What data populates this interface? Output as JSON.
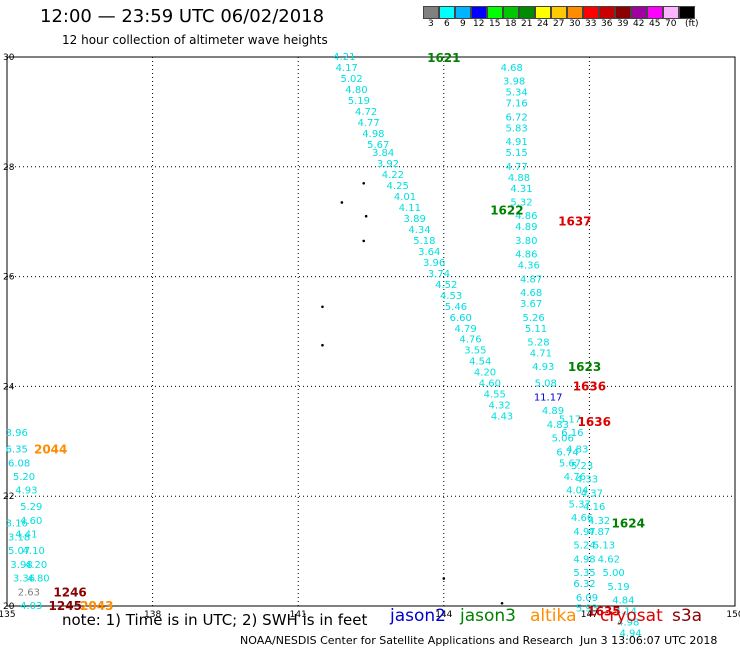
{
  "header": {
    "title": "12:00 — 23:59 UTC 06/02/2018",
    "subtitle": "12 hour collection of altimeter wave heights"
  },
  "legend": {
    "unit": "(ft)",
    "items": [
      {
        "label": "3",
        "color": "#808080"
      },
      {
        "label": "6",
        "color": "#00ffff"
      },
      {
        "label": "9",
        "color": "#00b4ff"
      },
      {
        "label": "12",
        "color": "#0000ff"
      },
      {
        "label": "15",
        "color": "#00ff00"
      },
      {
        "label": "18",
        "color": "#00c800"
      },
      {
        "label": "21",
        "color": "#008c00"
      },
      {
        "label": "24",
        "color": "#ffff00"
      },
      {
        "label": "27",
        "color": "#ffc800"
      },
      {
        "label": "30",
        "color": "#ff8c00"
      },
      {
        "label": "33",
        "color": "#ff0000"
      },
      {
        "label": "36",
        "color": "#c80000"
      },
      {
        "label": "39",
        "color": "#8c0000"
      },
      {
        "label": "42",
        "color": "#a000a0"
      },
      {
        "label": "45",
        "color": "#ff00ff"
      },
      {
        "label": "70",
        "color": "#ffb4ff"
      },
      {
        "label": "",
        "color": "#000000"
      }
    ]
  },
  "axes": {
    "lon_ticks": [
      "135",
      "138",
      "141",
      "144",
      "147",
      "150"
    ],
    "lat_ticks": [
      "20",
      "22",
      "24",
      "26",
      "28",
      "30"
    ],
    "lon_range": [
      135,
      150
    ],
    "lat_range": [
      20,
      30
    ],
    "grid": true
  },
  "chart_data": {
    "type": "scatter",
    "x_range": [
      135,
      150
    ],
    "y_range": [
      20,
      30
    ],
    "tracks": [
      {
        "satellite": "jason3",
        "time_label": "1621",
        "label_pos": [
          144.0,
          29.98
        ],
        "label_color": "#008000",
        "points": [
          {
            "lon": 141.95,
            "lat": 30.0,
            "swh": "4.21"
          },
          {
            "lon": 142.0,
            "lat": 29.8,
            "swh": "4.17"
          },
          {
            "lon": 142.1,
            "lat": 29.6,
            "swh": "5.02"
          },
          {
            "lon": 142.2,
            "lat": 29.4,
            "swh": "4.80"
          },
          {
            "lon": 142.25,
            "lat": 29.2,
            "swh": "5.19"
          },
          {
            "lon": 142.4,
            "lat": 29.0,
            "swh": "4.72"
          },
          {
            "lon": 142.45,
            "lat": 28.8,
            "swh": "4.77"
          },
          {
            "lon": 142.55,
            "lat": 28.6,
            "swh": "4.98"
          },
          {
            "lon": 142.65,
            "lat": 28.4,
            "swh": "5.67"
          },
          {
            "lon": 142.75,
            "lat": 28.25,
            "swh": "3.84"
          },
          {
            "lon": 142.85,
            "lat": 28.05,
            "swh": "3.92"
          },
          {
            "lon": 142.95,
            "lat": 27.85,
            "swh": "4.22"
          },
          {
            "lon": 143.05,
            "lat": 27.65,
            "swh": "4.25"
          },
          {
            "lon": 143.2,
            "lat": 27.45,
            "swh": "4.01"
          },
          {
            "lon": 143.3,
            "lat": 27.25,
            "swh": "4.11"
          },
          {
            "lon": 143.4,
            "lat": 27.05,
            "swh": "3.89"
          },
          {
            "lon": 143.5,
            "lat": 26.85,
            "swh": "4.34"
          },
          {
            "lon": 143.6,
            "lat": 26.65,
            "swh": "5.18"
          },
          {
            "lon": 143.7,
            "lat": 26.45,
            "swh": "3.64"
          },
          {
            "lon": 143.8,
            "lat": 26.25,
            "swh": "3.96"
          },
          {
            "lon": 143.9,
            "lat": 26.05,
            "swh": "3.74"
          },
          {
            "lon": 144.05,
            "lat": 25.85,
            "swh": "4.52"
          },
          {
            "lon": 144.15,
            "lat": 25.65,
            "swh": "4.53"
          },
          {
            "lon": 144.25,
            "lat": 25.45,
            "swh": "5.46"
          },
          {
            "lon": 144.35,
            "lat": 25.25,
            "swh": "6.60"
          },
          {
            "lon": 144.45,
            "lat": 25.05,
            "swh": "4.79"
          },
          {
            "lon": 144.55,
            "lat": 24.85,
            "swh": "4.76"
          },
          {
            "lon": 144.65,
            "lat": 24.65,
            "swh": "3.55"
          },
          {
            "lon": 144.75,
            "lat": 24.45,
            "swh": "4.54"
          },
          {
            "lon": 144.85,
            "lat": 24.25,
            "swh": "4.20"
          },
          {
            "lon": 144.95,
            "lat": 24.05,
            "swh": "4.60"
          },
          {
            "lon": 145.05,
            "lat": 23.85,
            "swh": "4.55"
          },
          {
            "lon": 145.15,
            "lat": 23.65,
            "swh": "4.32"
          },
          {
            "lon": 145.2,
            "lat": 23.45,
            "swh": "4.43"
          }
        ]
      },
      {
        "satellite": "jason3",
        "time_label": "1622",
        "label_pos": [
          145.3,
          27.2
        ],
        "label_color": "#008000",
        "points": [
          {
            "lon": 145.4,
            "lat": 29.8,
            "swh": "4.68"
          },
          {
            "lon": 145.45,
            "lat": 29.55,
            "swh": "3.98"
          },
          {
            "lon": 145.5,
            "lat": 29.35,
            "swh": "5.34"
          },
          {
            "lon": 145.5,
            "lat": 29.15,
            "swh": "7.16"
          },
          {
            "lon": 145.5,
            "lat": 28.9,
            "swh": "6.72"
          },
          {
            "lon": 145.5,
            "lat": 28.7,
            "swh": "5.83"
          },
          {
            "lon": 145.5,
            "lat": 28.45,
            "swh": "4.91"
          },
          {
            "lon": 145.5,
            "lat": 28.25,
            "swh": "5.15"
          },
          {
            "lon": 145.5,
            "lat": 28.0,
            "swh": "4.77"
          },
          {
            "lon": 145.55,
            "lat": 27.8,
            "swh": "4.88"
          },
          {
            "lon": 145.6,
            "lat": 27.6,
            "swh": "4.31"
          },
          {
            "lon": 145.6,
            "lat": 27.35,
            "swh": "5.32"
          },
          {
            "lon": 145.7,
            "lat": 27.1,
            "swh": "4.86"
          },
          {
            "lon": 145.7,
            "lat": 26.9,
            "swh": "4.89"
          },
          {
            "lon": 145.7,
            "lat": 26.65,
            "swh": "3.80"
          },
          {
            "lon": 145.7,
            "lat": 26.4,
            "swh": "4.86"
          },
          {
            "lon": 145.75,
            "lat": 26.2,
            "swh": "4.36"
          },
          {
            "lon": 145.8,
            "lat": 25.95,
            "swh": "4.87"
          },
          {
            "lon": 145.8,
            "lat": 25.7,
            "swh": "4.68"
          },
          {
            "lon": 145.8,
            "lat": 25.5,
            "swh": "3.67"
          },
          {
            "lon": 145.85,
            "lat": 25.25,
            "swh": "5.26"
          },
          {
            "lon": 145.9,
            "lat": 25.05,
            "swh": "5.11"
          },
          {
            "lon": 145.95,
            "lat": 24.8,
            "swh": "5.28"
          },
          {
            "lon": 146.0,
            "lat": 24.6,
            "swh": "4.71"
          },
          {
            "lon": 146.05,
            "lat": 24.35,
            "swh": "4.93"
          }
        ]
      },
      {
        "satellite": "jason3",
        "time_label": "1623",
        "label_pos": [
          146.9,
          24.35
        ],
        "label_color": "#008000",
        "points": [
          {
            "lon": 146.1,
            "lat": 24.05,
            "swh": "5.08"
          },
          {
            "lon": 146.15,
            "lat": 23.8,
            "swh": "11.17"
          },
          {
            "lon": 146.25,
            "lat": 23.55,
            "swh": "4.89"
          },
          {
            "lon": 146.35,
            "lat": 23.3,
            "swh": "4.83"
          },
          {
            "lon": 146.45,
            "lat": 23.05,
            "swh": "5.06"
          },
          {
            "lon": 146.55,
            "lat": 22.8,
            "swh": "6.74"
          },
          {
            "lon": 146.6,
            "lat": 22.6,
            "swh": "5.67"
          },
          {
            "lon": 146.7,
            "lat": 22.35,
            "swh": "4.76"
          },
          {
            "lon": 146.75,
            "lat": 22.1,
            "swh": "4.04"
          },
          {
            "lon": 146.8,
            "lat": 21.85,
            "swh": "5.37"
          },
          {
            "lon": 146.85,
            "lat": 21.6,
            "swh": "4.66"
          },
          {
            "lon": 146.9,
            "lat": 21.35,
            "swh": "4.97"
          },
          {
            "lon": 146.9,
            "lat": 21.1,
            "swh": "5.24"
          },
          {
            "lon": 146.9,
            "lat": 20.85,
            "swh": "4.98"
          },
          {
            "lon": 146.9,
            "lat": 20.6,
            "swh": "5.35"
          },
          {
            "lon": 146.9,
            "lat": 20.4,
            "swh": "6.32"
          },
          {
            "lon": 146.95,
            "lat": 20.15,
            "swh": "6.09"
          },
          {
            "lon": 146.95,
            "lat": 19.95,
            "swh": "5.93"
          }
        ]
      },
      {
        "satellite": "jason3",
        "time_label": "1624",
        "label_pos": [
          147.8,
          21.5
        ],
        "label_color": "#008000",
        "points": [
          {
            "lon": 146.6,
            "lat": 23.4,
            "swh": "5.17"
          },
          {
            "lon": 146.65,
            "lat": 23.15,
            "swh": "6.16"
          },
          {
            "lon": 146.75,
            "lat": 22.85,
            "swh": "4.83"
          },
          {
            "lon": 146.85,
            "lat": 22.55,
            "swh": "5.23"
          },
          {
            "lon": 146.95,
            "lat": 22.3,
            "swh": "4.33"
          },
          {
            "lon": 147.05,
            "lat": 22.05,
            "swh": "4.37"
          },
          {
            "lon": 147.1,
            "lat": 21.8,
            "swh": "4.16"
          },
          {
            "lon": 147.2,
            "lat": 21.55,
            "swh": "4.32"
          },
          {
            "lon": 147.2,
            "lat": 21.35,
            "swh": "4.87"
          },
          {
            "lon": 147.3,
            "lat": 21.1,
            "swh": "5.13"
          },
          {
            "lon": 147.4,
            "lat": 20.85,
            "swh": "4.62"
          },
          {
            "lon": 147.5,
            "lat": 20.6,
            "swh": "5.00"
          },
          {
            "lon": 147.6,
            "lat": 20.35,
            "swh": "5.19"
          },
          {
            "lon": 147.7,
            "lat": 20.1,
            "swh": "4.84"
          },
          {
            "lon": 147.75,
            "lat": 19.9,
            "swh": "4.14"
          },
          {
            "lon": 147.8,
            "lat": 19.7,
            "swh": "4.98"
          },
          {
            "lon": 147.85,
            "lat": 19.5,
            "swh": "4.94"
          }
        ]
      },
      {
        "satellite": "cryosat",
        "time_label": "1637",
        "label_pos": [
          146.7,
          27.0
        ],
        "label_color": "#dd0000",
        "points": []
      },
      {
        "satellite": "cryosat",
        "time_label": "1636",
        "label_pos": [
          147.0,
          24.0
        ],
        "label_color": "#dd0000",
        "points": []
      },
      {
        "satellite": "cryosat",
        "time_label": "1636",
        "label_pos": [
          147.1,
          23.35
        ],
        "label_color": "#dd0000",
        "points": []
      },
      {
        "satellite": "cryosat",
        "time_label": "1635",
        "label_pos": [
          147.3,
          19.9
        ],
        "label_color": "#dd0000",
        "points": []
      },
      {
        "satellite": "altika",
        "time_label": "2044",
        "label_pos": [
          135.9,
          22.85
        ],
        "label_color": "#ff8c00",
        "points": [
          {
            "lon": 135.2,
            "lat": 23.15,
            "swh": "3.96"
          },
          {
            "lon": 135.2,
            "lat": 22.85,
            "swh": "6.35"
          },
          {
            "lon": 135.25,
            "lat": 22.6,
            "swh": "6.08"
          },
          {
            "lon": 135.35,
            "lat": 22.35,
            "swh": "5.20"
          },
          {
            "lon": 135.4,
            "lat": 22.1,
            "swh": "4.93"
          },
          {
            "lon": 135.5,
            "lat": 21.8,
            "swh": "5.29"
          },
          {
            "lon": 135.5,
            "lat": 21.55,
            "swh": "4.60"
          },
          {
            "lon": 135.2,
            "lat": 21.5,
            "swh": "3.16"
          },
          {
            "lon": 135.4,
            "lat": 21.3,
            "swh": "4.41"
          },
          {
            "lon": 135.25,
            "lat": 21.25,
            "swh": "3.18"
          },
          {
            "lon": 135.55,
            "lat": 21.0,
            "swh": "4.10"
          },
          {
            "lon": 135.25,
            "lat": 21.0,
            "swh": "5.07"
          },
          {
            "lon": 135.6,
            "lat": 20.75,
            "swh": "4.20"
          },
          {
            "lon": 135.3,
            "lat": 20.75,
            "swh": "3.98"
          },
          {
            "lon": 135.65,
            "lat": 20.5,
            "swh": "4.80"
          },
          {
            "lon": 135.35,
            "lat": 20.5,
            "swh": "3.36"
          }
        ]
      },
      {
        "satellite": "s3a",
        "time_label": "1246",
        "label_pos": [
          136.3,
          20.25
        ],
        "label_color": "#8b0000",
        "points": [
          {
            "lon": 135.45,
            "lat": 20.25,
            "swh": "2.63"
          }
        ]
      },
      {
        "satellite": "s3a",
        "time_label": "1245",
        "label_pos": [
          136.2,
          20.0
        ],
        "label_color": "#8b0000",
        "points": [
          {
            "lon": 135.5,
            "lat": 20.0,
            "swh": "4.03"
          }
        ]
      },
      {
        "satellite": "altika",
        "time_label": "2043",
        "label_pos": [
          136.85,
          20.0
        ],
        "label_color": "#ff8c00",
        "points": []
      }
    ]
  },
  "footer": {
    "note": "note:  1) Time is in UTC;  2) SWH is in feet",
    "satellites": [
      {
        "name": "jason2",
        "color": "#0000cc"
      },
      {
        "name": "jason3",
        "color": "#008000"
      },
      {
        "name": "altika",
        "color": "#ff8c00"
      },
      {
        "name": "cryosat",
        "color": "#dd0000"
      },
      {
        "name": "s3a",
        "color": "#8b0000"
      }
    ],
    "credit": "NOAA/NESDIS Center for Satellite Applications and Research",
    "timestamp": "Jun  3 13:06:07 UTC 2018"
  }
}
